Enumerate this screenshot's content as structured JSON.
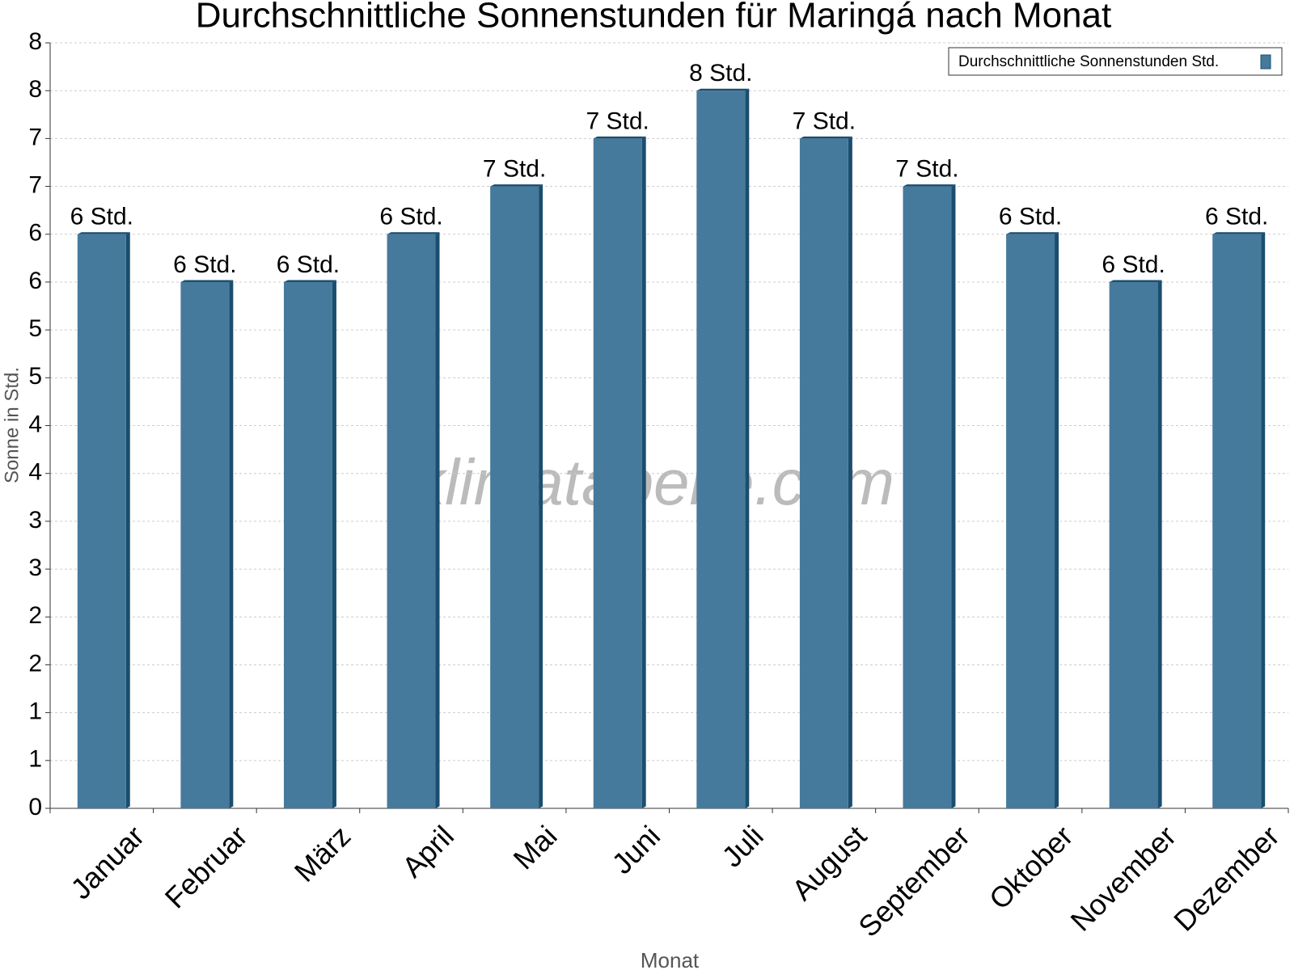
{
  "chart_data": {
    "type": "bar",
    "title": "Durchschnittliche Sonnenstunden für Maringá nach Monat",
    "x_label": "Monat",
    "y_label": "Sonne in Std.",
    "watermark": "klimatabelle.com",
    "categories": [
      "Januar",
      "Februar",
      "März",
      "April",
      "Mai",
      "Juni",
      "Juli",
      "August",
      "September",
      "Oktober",
      "November",
      "Dezember"
    ],
    "series": [
      {
        "name": "Durchschnittliche Sonnenstunden Std.",
        "color": "#467a9c",
        "values": [
          6.0,
          5.5,
          5.5,
          6.0,
          6.5,
          7.0,
          7.5,
          7.0,
          6.5,
          6.0,
          5.5,
          6.0
        ],
        "value_labels": [
          "6 Std.",
          "6 Std.",
          "6 Std.",
          "6 Std.",
          "7 Std.",
          "7 Std.",
          "8 Std.",
          "7 Std.",
          "7 Std.",
          "6 Std.",
          "6 Std.",
          "6 Std."
        ]
      }
    ],
    "ylim": [
      0,
      8
    ],
    "yticks": [
      0,
      {
        "value": 0.5,
        "label": "1"
      },
      1,
      {
        "value": 1.5,
        "label": "2"
      },
      2,
      {
        "value": 2.5,
        "label": "3"
      },
      3,
      {
        "value": 3.5,
        "label": "4"
      },
      4,
      {
        "value": 4.5,
        "label": "5"
      },
      5,
      {
        "value": 5.5,
        "label": "6"
      },
      6,
      {
        "value": 6.5,
        "label": "7"
      },
      7,
      {
        "value": 7.5,
        "label": "8"
      },
      8
    ],
    "grid": true,
    "legend": "top-right"
  }
}
